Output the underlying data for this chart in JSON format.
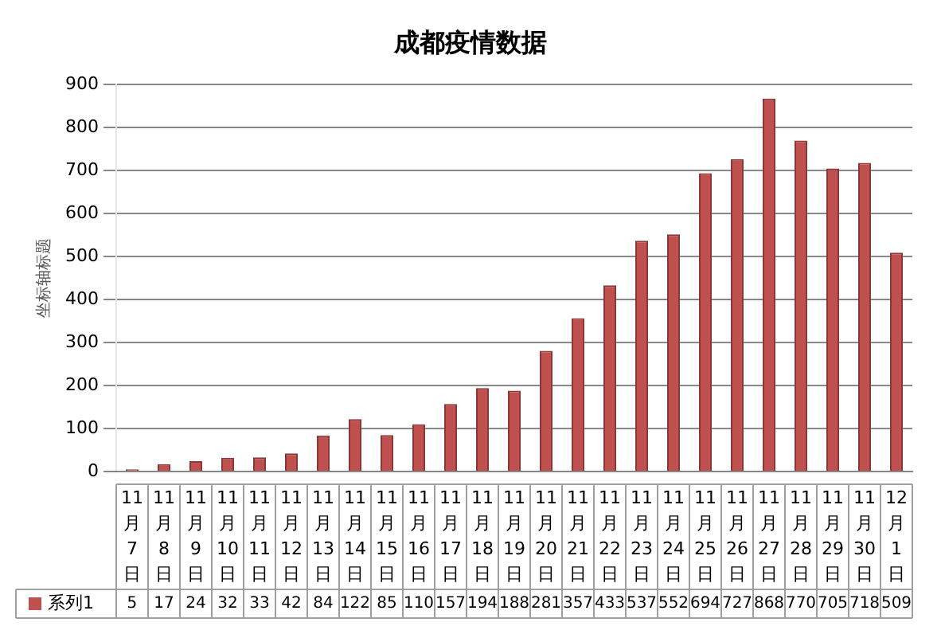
{
  "chart_data": {
    "type": "bar",
    "title": "成都疫情数据",
    "ylabel": "坐标轴标题",
    "categories": [
      "11月7日",
      "11月8日",
      "11月9日",
      "11月10日",
      "11月11日",
      "11月12日",
      "11月13日",
      "11月14日",
      "11月15日",
      "11月16日",
      "11月17日",
      "11月18日",
      "11月19日",
      "11月20日",
      "11月21日",
      "11月22日",
      "11月23日",
      "11月24日",
      "11月25日",
      "11月26日",
      "11月27日",
      "11月28日",
      "11月29日",
      "11月30日",
      "12月1日"
    ],
    "series": [
      {
        "name": "系列1",
        "color": "#c0504d",
        "values": [
          5,
          17,
          24,
          32,
          33,
          42,
          84,
          122,
          85,
          110,
          157,
          194,
          188,
          281,
          357,
          433,
          537,
          552,
          694,
          727,
          868,
          770,
          705,
          718,
          509
        ]
      }
    ],
    "ylim": [
      0,
      900
    ],
    "yticks": [
      0,
      100,
      200,
      300,
      400,
      500,
      600,
      700,
      800,
      900
    ],
    "grid": "y",
    "legend": "bottom left",
    "data_labels": true
  }
}
